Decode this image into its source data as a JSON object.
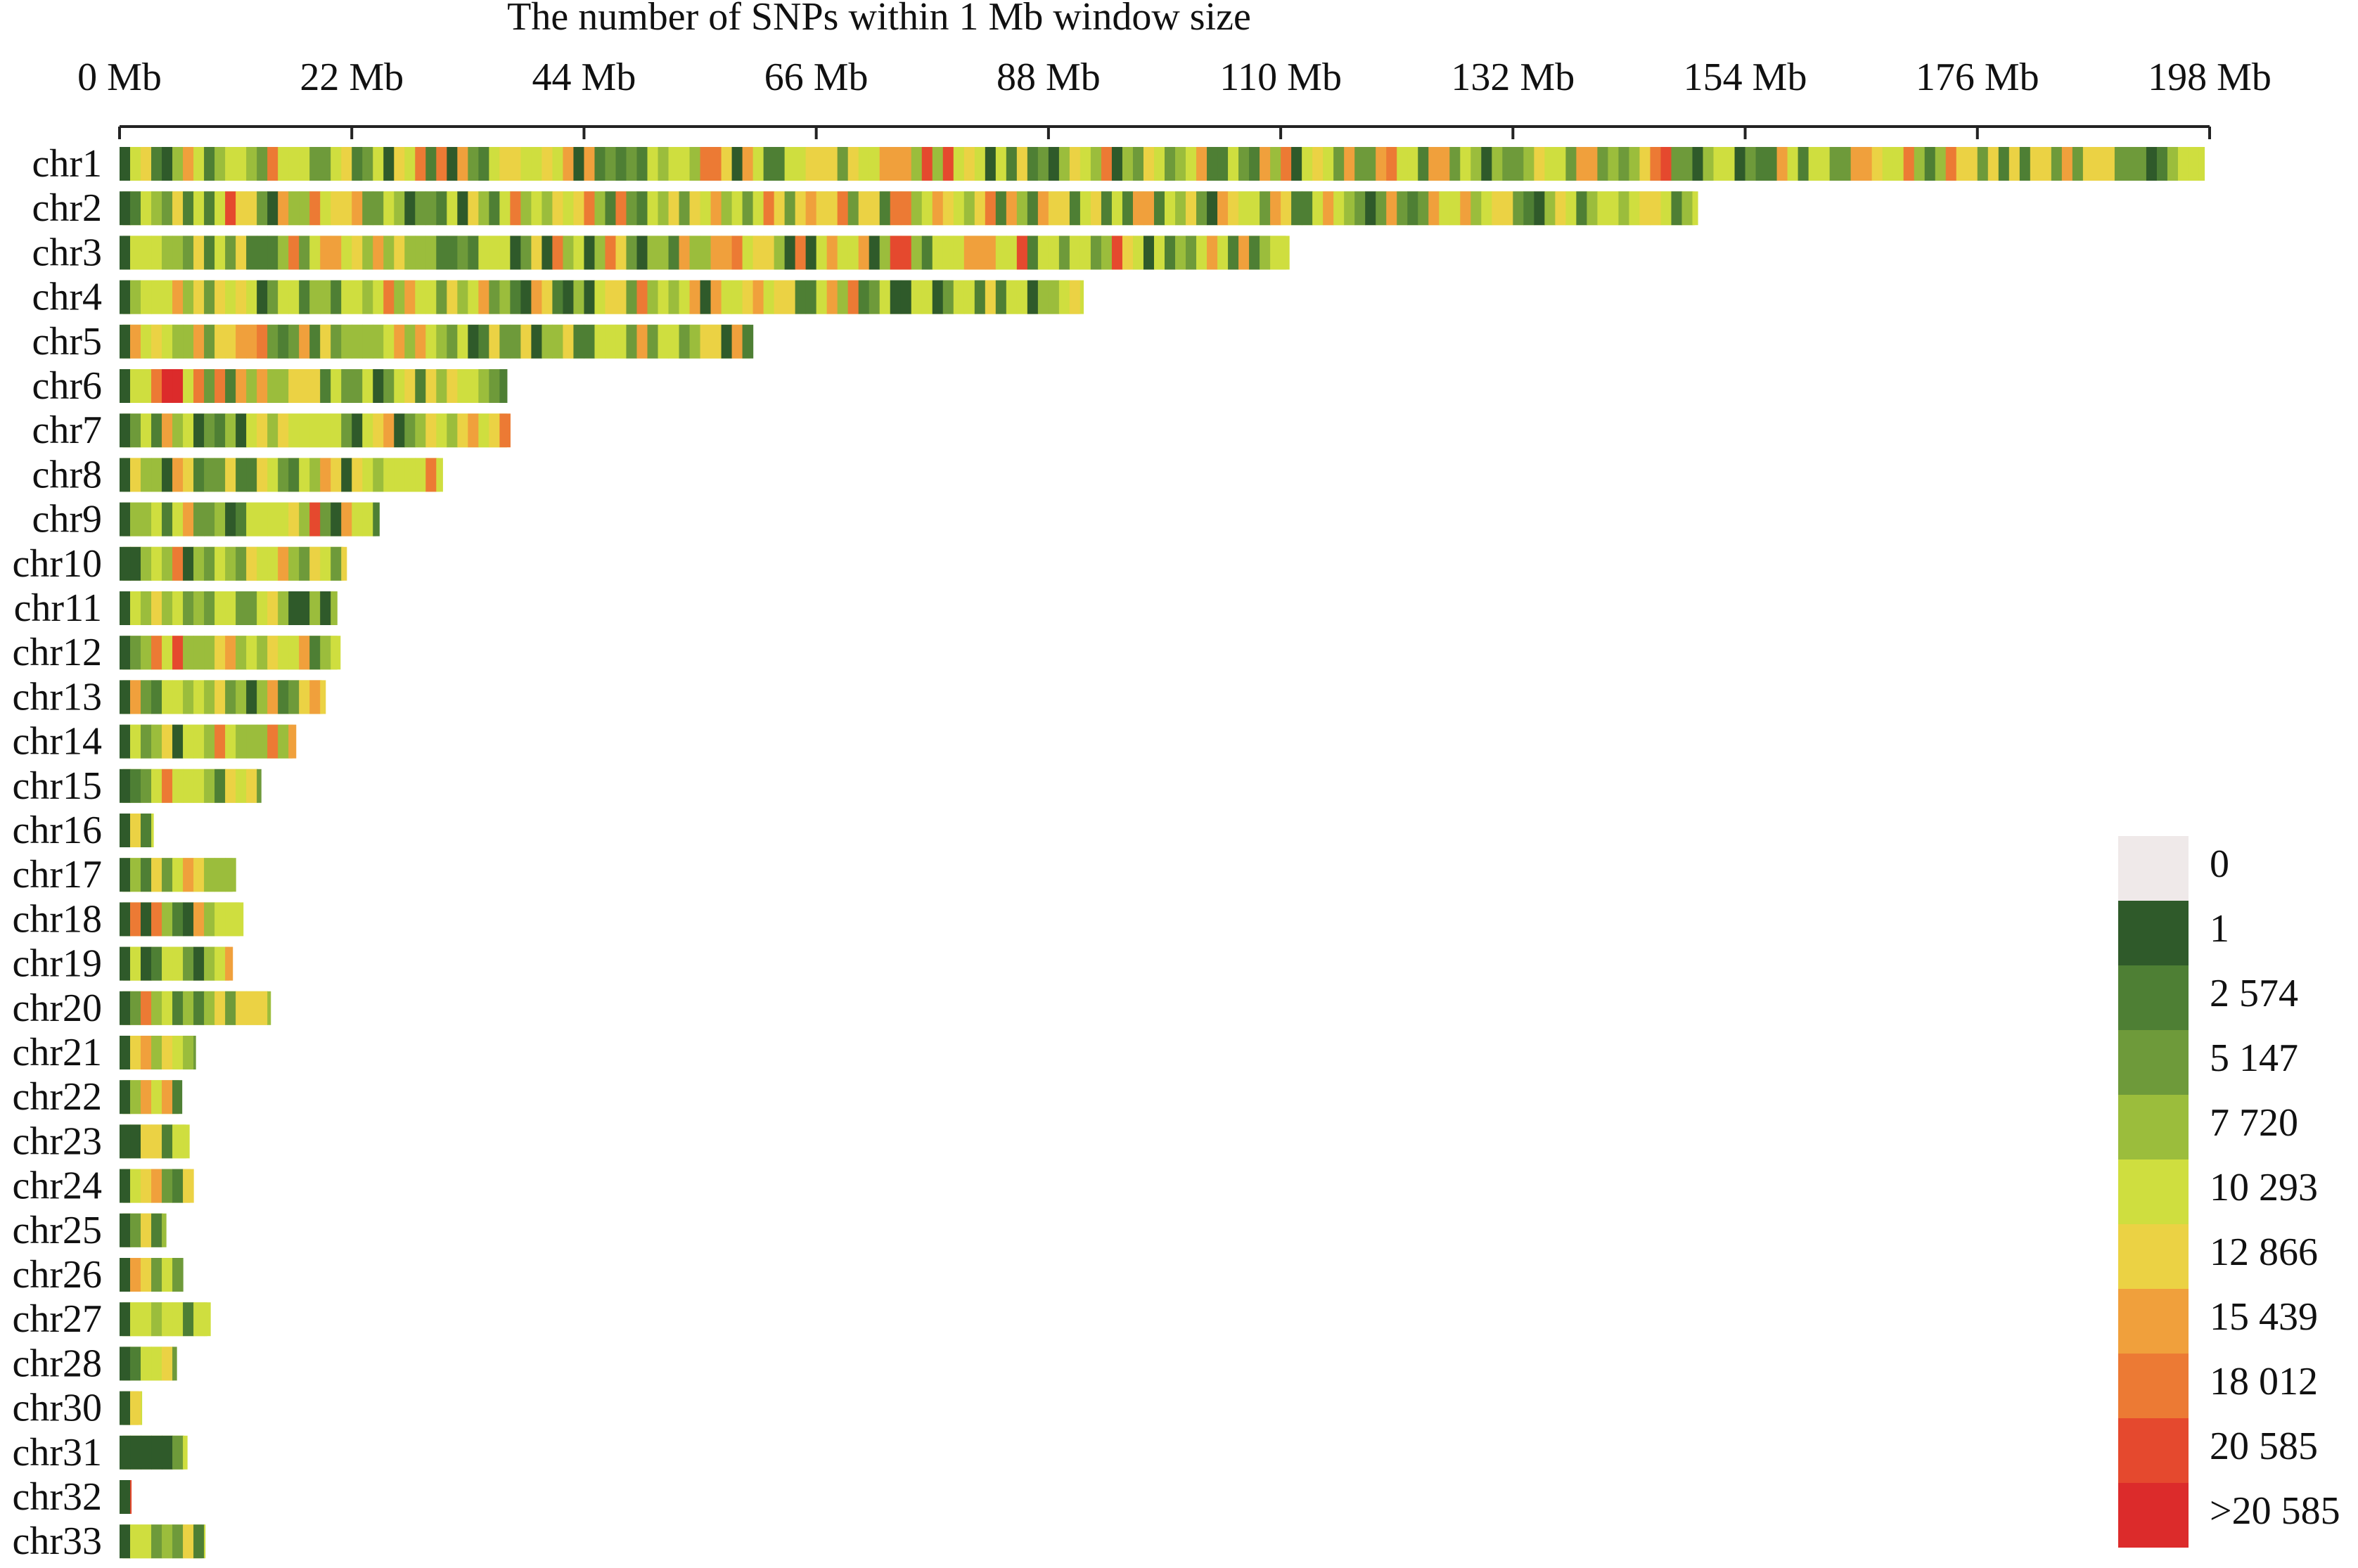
{
  "chart_data": {
    "type": "heatmap",
    "title": "The number of SNPs within 1 Mb window size",
    "xlabel": "",
    "ylabel": "",
    "xlim": [
      0,
      198
    ],
    "x_ticks": [
      0,
      22,
      44,
      66,
      88,
      110,
      132,
      154,
      176,
      198
    ],
    "x_tick_labels": [
      "0 Mb",
      "22 Mb",
      "44 Mb",
      "66 Mb",
      "88 Mb",
      "110 Mb",
      "132 Mb",
      "154 Mb",
      "176 Mb",
      "198 Mb"
    ],
    "legend_position": "bottom-right",
    "legend": {
      "labels": [
        "0",
        "1",
        "2 574",
        "5 147",
        "7 720",
        "10 293",
        "12 866",
        "15 439",
        "18 012",
        "20 585",
        ">20 585"
      ],
      "colors": [
        "#efe9e9",
        "#2f5a2a",
        "#4e7f34",
        "#6e9a3a",
        "#9bbd3c",
        "#cfde3f",
        "#ebd244",
        "#f0a03c",
        "#ec7a34",
        "#e5492e",
        "#dc2b2b"
      ]
    },
    "chromosomes": [
      {
        "name": "chr1",
        "length_mb": 197.5
      },
      {
        "name": "chr2",
        "length_mb": 149.5
      },
      {
        "name": "chr3",
        "length_mb": 110.8
      },
      {
        "name": "chr4",
        "length_mb": 91.3
      },
      {
        "name": "chr5",
        "length_mb": 60.0
      },
      {
        "name": "chr6",
        "length_mb": 36.7
      },
      {
        "name": "chr7",
        "length_mb": 37.0
      },
      {
        "name": "chr8",
        "length_mb": 30.6
      },
      {
        "name": "chr9",
        "length_mb": 24.6
      },
      {
        "name": "chr10",
        "length_mb": 21.5
      },
      {
        "name": "chr11",
        "length_mb": 20.6
      },
      {
        "name": "chr12",
        "length_mb": 20.9
      },
      {
        "name": "chr13",
        "length_mb": 19.5
      },
      {
        "name": "chr14",
        "length_mb": 16.7
      },
      {
        "name": "chr15",
        "length_mb": 13.4
      },
      {
        "name": "chr16",
        "length_mb": 3.2
      },
      {
        "name": "chr17",
        "length_mb": 11.0
      },
      {
        "name": "chr18",
        "length_mb": 11.7
      },
      {
        "name": "chr19",
        "length_mb": 10.7
      },
      {
        "name": "chr20",
        "length_mb": 14.3
      },
      {
        "name": "chr21",
        "length_mb": 7.2
      },
      {
        "name": "chr22",
        "length_mb": 5.9
      },
      {
        "name": "chr23",
        "length_mb": 6.6
      },
      {
        "name": "chr24",
        "length_mb": 7.0
      },
      {
        "name": "chr25",
        "length_mb": 4.4
      },
      {
        "name": "chr26",
        "length_mb": 6.0
      },
      {
        "name": "chr27",
        "length_mb": 8.6
      },
      {
        "name": "chr28",
        "length_mb": 5.4
      },
      {
        "name": "chr30",
        "length_mb": 2.1
      },
      {
        "name": "chr31",
        "length_mb": 6.4
      },
      {
        "name": "chr32",
        "length_mb": 1.1
      },
      {
        "name": "chr33",
        "length_mb": 8.1
      }
    ]
  }
}
